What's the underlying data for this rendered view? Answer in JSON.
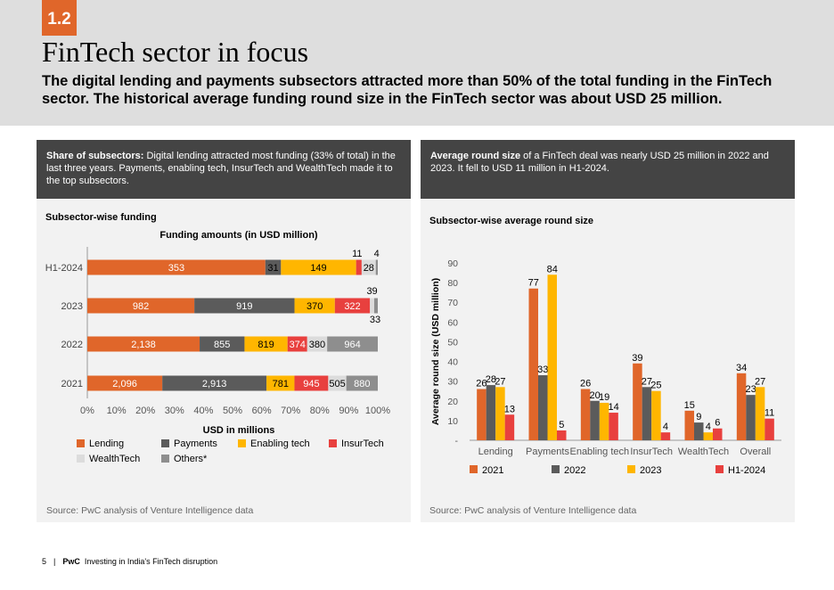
{
  "header": {
    "section_number": "1.2",
    "title": "FinTech sector in focus",
    "subtitle": "The digital lending and payments subsectors attracted more than 50% of the total funding in the FinTech sector. The historical average funding round size in the FinTech sector was about USD 25 million."
  },
  "left_panel": {
    "header_bold": "Share of subsectors:",
    "header_text": " Digital lending attracted most funding (33% of total) in the last three years. Payments, enabling tech, InsurTech and WealthTech made it to the top subsectors.",
    "chart_label": "Subsector-wise funding",
    "source": "Source: PwC analysis of Venture Intelligence data"
  },
  "right_panel": {
    "header_bold": "Average round size",
    "header_text": " of a FinTech deal was nearly USD 25 million in 2022 and 2023. It fell to USD 11 million in H1-2024.",
    "chart_label": "Subsector-wise average round size",
    "source": "Source: PwC analysis of Venture Intelligence data"
  },
  "footer": {
    "page": "5",
    "separator": "|",
    "brand": "PwC",
    "doc_title": "Investing in India's FinTech disruption"
  },
  "colors": {
    "Lending": "#e0662a",
    "Payments": "#5b5b5b",
    "Enabling tech": "#ffb600",
    "InsurTech": "#e8403e",
    "WealthTech": "#dcdcdc",
    "Others*": "#8e8e8e"
  },
  "chart_data": [
    {
      "type": "bar",
      "orientation": "horizontal",
      "stacked": "100%",
      "title": "Funding amounts (in USD million)",
      "xlabel": "USD in millions",
      "ylabel": "",
      "xlim": [
        0,
        100
      ],
      "x_ticks": [
        "0%",
        "10%",
        "20%",
        "30%",
        "40%",
        "50%",
        "60%",
        "70%",
        "80%",
        "90%",
        "100%"
      ],
      "categories": [
        "H1-2024",
        "2023",
        "2022",
        "2021"
      ],
      "series": [
        {
          "name": "Lending",
          "values": [
            353,
            982,
            2138,
            2096
          ],
          "labels": [
            "353",
            "982",
            "2,138",
            "2,096"
          ]
        },
        {
          "name": "Payments",
          "values": [
            31,
            919,
            855,
            2913
          ],
          "labels": [
            "31",
            "919",
            "855",
            "2,913"
          ]
        },
        {
          "name": "Enabling tech",
          "values": [
            149,
            370,
            819,
            781
          ],
          "labels": [
            "149",
            "370",
            "819",
            "781"
          ]
        },
        {
          "name": "InsurTech",
          "values": [
            11,
            322,
            374,
            945
          ],
          "labels": [
            "11",
            "322",
            "374",
            "945"
          ]
        },
        {
          "name": "WealthTech",
          "values": [
            28,
            39,
            380,
            505
          ],
          "labels": [
            "28",
            "39",
            "380",
            "505"
          ]
        },
        {
          "name": "Others*",
          "values": [
            4,
            33,
            964,
            880
          ],
          "labels": [
            "4",
            "33",
            "964",
            "880"
          ]
        }
      ],
      "legend": [
        "Lending",
        "Payments",
        "Enabling tech",
        "InsurTech",
        "WealthTech",
        "Others*"
      ],
      "legend_position": "bottom"
    },
    {
      "type": "bar",
      "orientation": "vertical",
      "title": "",
      "xlabel": "",
      "ylabel": "Average round size (USD million)",
      "ylim": [
        0,
        90
      ],
      "y_ticks": [
        "-",
        "10",
        "20",
        "30",
        "40",
        "50",
        "60",
        "70",
        "80",
        "90"
      ],
      "categories": [
        "Lending",
        "Payments",
        "Enabling tech",
        "InsurTech",
        "WealthTech",
        "Overall"
      ],
      "series": [
        {
          "name": "2021",
          "color": "#e0662a",
          "values": [
            26,
            77,
            26,
            39,
            15,
            34
          ]
        },
        {
          "name": "2022",
          "color": "#5b5b5b",
          "values": [
            28,
            33,
            20,
            27,
            9,
            23
          ]
        },
        {
          "name": "2023",
          "color": "#ffb600",
          "values": [
            27,
            84,
            19,
            25,
            4,
            27
          ]
        },
        {
          "name": "H1-2024",
          "color": "#e8403e",
          "values": [
            13,
            5,
            14,
            4,
            6,
            11
          ]
        }
      ],
      "legend_position": "bottom"
    }
  ]
}
